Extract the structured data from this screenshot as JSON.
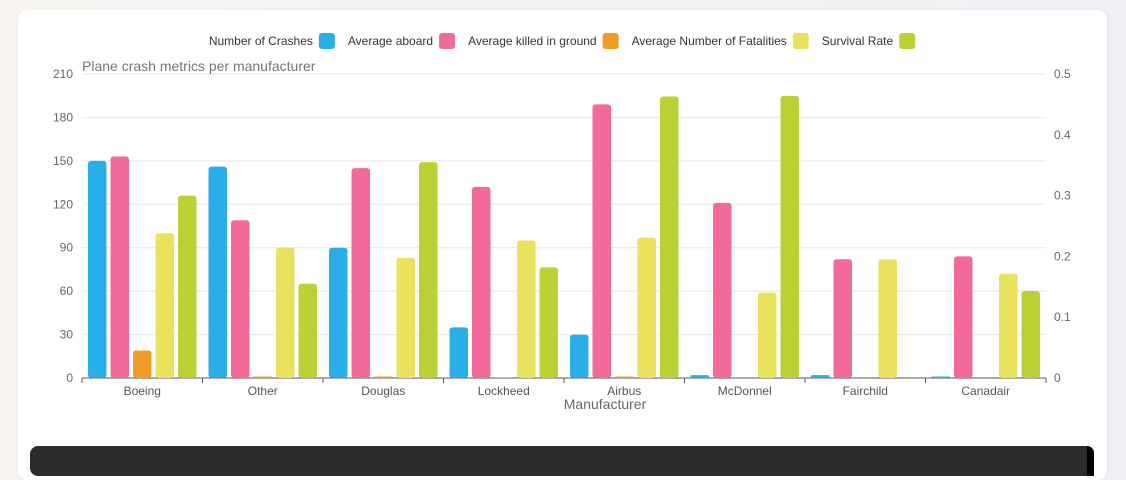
{
  "chart_data": {
    "type": "bar",
    "title": "Plane crash metrics per manufacturer",
    "xlabel": "Manufacturer",
    "ylabel": "",
    "categories": [
      "Boeing",
      "Other",
      "Douglas",
      "Lockheed",
      "Airbus",
      "McDonnel",
      "Fairchild",
      "Canadair"
    ],
    "ylim": [
      0,
      210
    ],
    "yticks": [
      0,
      30,
      60,
      90,
      120,
      150,
      180,
      210
    ],
    "y2lim": [
      0,
      0.5
    ],
    "y2ticks": [
      "0",
      "0.1",
      "0.2",
      "0.3",
      "0.4",
      "0.5"
    ],
    "legend_position": "top",
    "grid": true,
    "series": [
      {
        "name": "Number of Crashes",
        "color": "#29aee9",
        "axis": "left",
        "values": [
          150,
          146,
          90,
          35,
          30,
          2,
          2,
          1
        ]
      },
      {
        "name": "Average aboard",
        "color": "#f26a9b",
        "axis": "left",
        "values": [
          153,
          109,
          145,
          132,
          189,
          121,
          82,
          84
        ]
      },
      {
        "name": "Average killed in ground",
        "color": "#f19c26",
        "axis": "left",
        "values": [
          19,
          1,
          1,
          0.5,
          1,
          0,
          0,
          0
        ]
      },
      {
        "name": "Average Number of Fatalities",
        "color": "#eae15c",
        "axis": "left",
        "values": [
          100,
          90,
          83,
          95,
          97,
          59,
          82,
          72
        ]
      },
      {
        "name": "Survival Rate",
        "color": "#bcd033",
        "axis": "right",
        "values": [
          0.3,
          0.155,
          0.355,
          0.182,
          0.463,
          0.464,
          0,
          0.143
        ]
      }
    ]
  }
}
